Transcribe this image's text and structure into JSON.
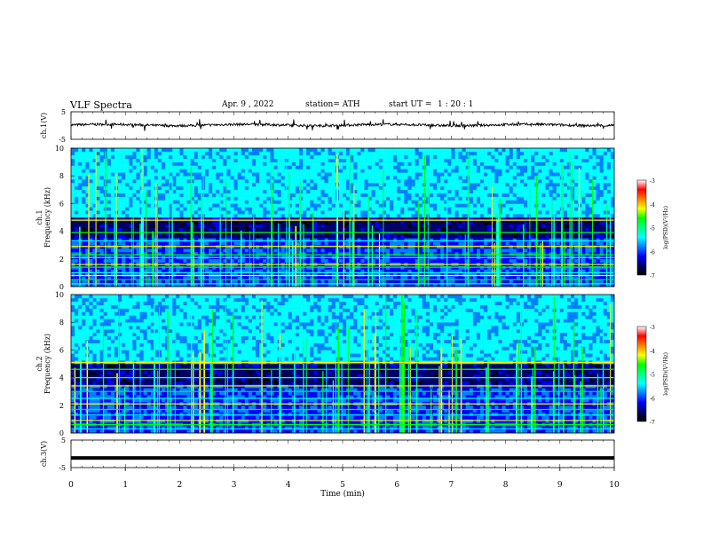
{
  "header": {
    "title": "VLF  Spectra",
    "date": "Apr. 9  , 2022",
    "station": "station= ATH",
    "start_label": "start  UT  =",
    "start_time": "1  : 20 : 1"
  },
  "colors": {
    "spectrogram_scale": [
      "#000000",
      "#000066",
      "#0000ff",
      "#0080ff",
      "#00ffff",
      "#00ff80",
      "#00ff00",
      "#ffff00",
      "#ff8000",
      "#ff0000",
      "#ffffff"
    ],
    "waveform": "#000000"
  },
  "chart_data": [
    {
      "type": "line",
      "name": "ch1-waveform",
      "ylabel": "ch.1(V)",
      "ylim": [
        -5,
        5
      ],
      "yticks": [
        "5",
        "-5"
      ],
      "baseline": 0.2,
      "amplitude_range": [
        -1.0,
        1.4
      ]
    },
    {
      "type": "heatmap",
      "name": "ch1-spectrogram",
      "ylabel": "ch.1\nFrequency  (kHz)",
      "ylim": [
        0,
        10
      ],
      "yticks": [
        "0",
        "2",
        "4",
        "6",
        "8",
        "10"
      ],
      "xlim": [
        0,
        10
      ],
      "signal_bands_khz": [
        0.2,
        0.5,
        0.8,
        1.0,
        1.4,
        1.6,
        2.1,
        2.3,
        2.9,
        3.3,
        3.9,
        4.8
      ],
      "colorbar": {
        "label": "log(PSD)(V²/Hz)",
        "ticks": [
          "-3",
          "-4",
          "-5",
          "-6",
          "-7"
        ],
        "range": [
          -7,
          -3
        ]
      }
    },
    {
      "type": "heatmap",
      "name": "ch2-spectrogram",
      "ylabel": "ch.2\nFrequency  (kHz)",
      "ylim": [
        0,
        10
      ],
      "yticks": [
        "0",
        "2",
        "4",
        "6",
        "8",
        "10"
      ],
      "xlim": [
        0,
        10
      ],
      "signal_bands_khz": [
        0.3,
        0.6,
        0.9,
        1.3,
        1.7,
        2.1,
        2.5,
        3.0,
        3.4,
        4.0,
        4.6,
        5.1
      ],
      "colorbar": {
        "label": "log(PSD)(V²/Hz)",
        "ticks": [
          "-3",
          "-4",
          "-5",
          "-6",
          "-7"
        ],
        "range": [
          -7,
          -3
        ]
      }
    },
    {
      "type": "line",
      "name": "ch3-waveform",
      "ylabel": "ch.3(V)",
      "ylim": [
        -5,
        5
      ],
      "yticks": [
        "5",
        "-5"
      ],
      "baseline": -1.5,
      "xlabel": "Time  (min)",
      "xlim": [
        0,
        10
      ],
      "xticks": [
        "0",
        "1",
        "2",
        "3",
        "4",
        "5",
        "6",
        "7",
        "8",
        "9",
        "10"
      ]
    }
  ]
}
